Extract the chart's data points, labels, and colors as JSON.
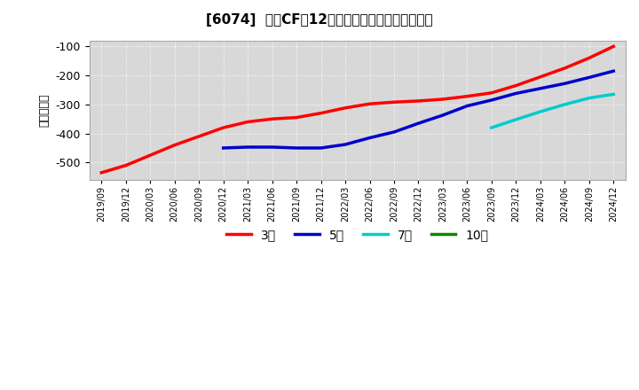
{
  "title": "[6074]  投資CFの12か月移動合計の平均値の推移",
  "ylabel": "（百万円）",
  "ylim": [
    -560,
    -80
  ],
  "yticks": [
    -500,
    -400,
    -300,
    -200,
    -100
  ],
  "fig_bg_color": "#ffffff",
  "plot_bg_color": "#d8d8d8",
  "grid_color": "#ffffff",
  "line_3y_color": "#ff0000",
  "line_5y_color": "#0000cc",
  "line_7y_color": "#00cccc",
  "line_10y_color": "#008800",
  "legend_labels": [
    "3年",
    "5年",
    "7年",
    "10年"
  ],
  "x_labels": [
    "2019/09",
    "2019/12",
    "2020/03",
    "2020/06",
    "2020/09",
    "2020/12",
    "2021/03",
    "2021/06",
    "2021/09",
    "2021/12",
    "2022/03",
    "2022/06",
    "2022/09",
    "2022/12",
    "2023/03",
    "2023/06",
    "2023/09",
    "2023/12",
    "2024/03",
    "2024/06",
    "2024/09",
    "2024/12"
  ],
  "data_3y": {
    "x_indices": [
      0,
      1,
      2,
      3,
      4,
      5,
      6,
      7,
      8,
      9,
      10,
      11,
      12,
      13,
      14,
      15,
      16,
      17,
      18,
      19,
      20,
      21
    ],
    "y": [
      -535,
      -510,
      -475,
      -440,
      -410,
      -380,
      -360,
      -350,
      -345,
      -330,
      -312,
      -298,
      -292,
      -288,
      -282,
      -272,
      -260,
      -235,
      -205,
      -175,
      -140,
      -100
    ]
  },
  "data_5y": {
    "x_indices": [
      5,
      6,
      7,
      8,
      9,
      10,
      11,
      12,
      13,
      14,
      15,
      16,
      17,
      18,
      19,
      20,
      21
    ],
    "y": [
      -450,
      -447,
      -447,
      -450,
      -450,
      -438,
      -415,
      -395,
      -365,
      -337,
      -305,
      -285,
      -262,
      -245,
      -228,
      -207,
      -185
    ]
  },
  "data_7y": {
    "x_indices": [
      16,
      17,
      18,
      19,
      20,
      21
    ],
    "y": [
      -380,
      -352,
      -325,
      -300,
      -278,
      -265
    ]
  },
  "data_10y": {
    "x_indices": [],
    "y": []
  }
}
